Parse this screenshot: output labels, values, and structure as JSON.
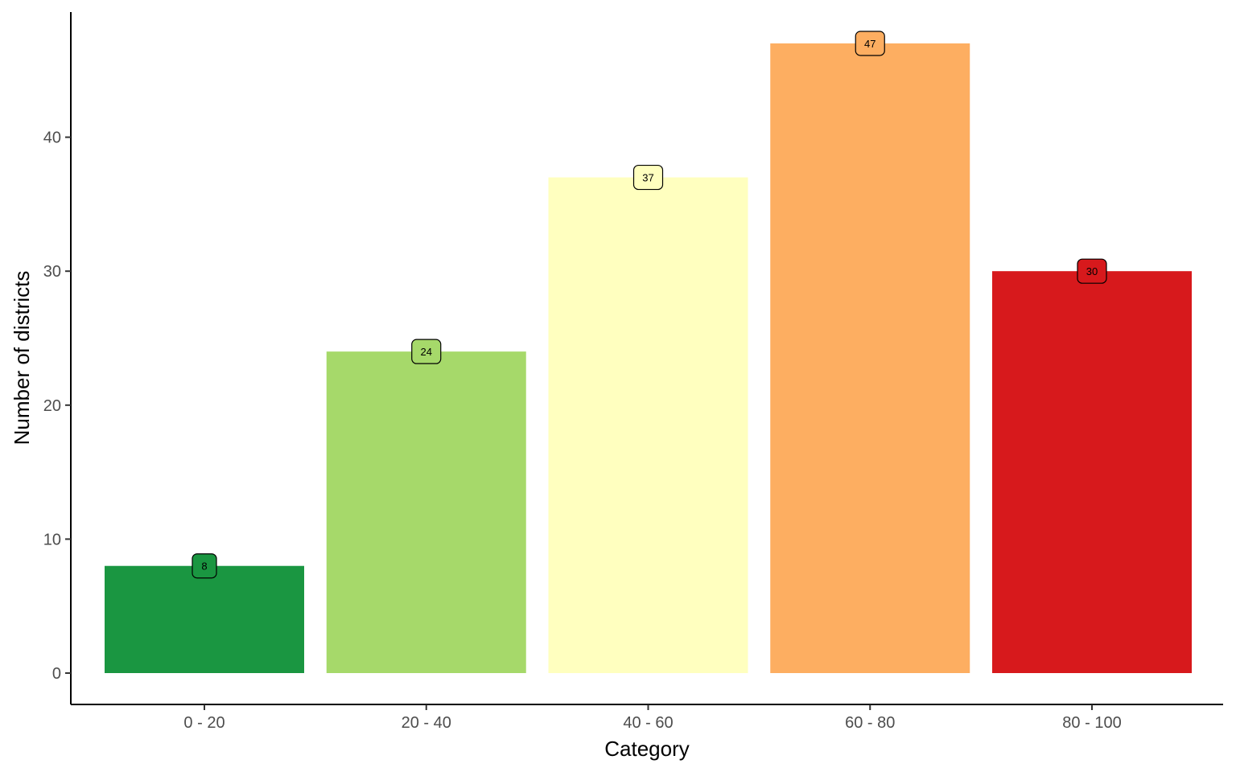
{
  "chart_data": {
    "type": "bar",
    "title": "",
    "xlabel": "Category",
    "ylabel": "Number of districts",
    "categories": [
      "0 - 20",
      "20 - 40",
      "40 - 60",
      "60 - 80",
      "80 - 100"
    ],
    "values": [
      8,
      24,
      37,
      47,
      30
    ],
    "data_labels": [
      "8",
      "24",
      "37",
      "47",
      "30"
    ],
    "bar_colors": [
      "#1a9641",
      "#a6d96a",
      "#ffffbf",
      "#fdae61",
      "#d7191c"
    ],
    "ylim": [
      0,
      49.35
    ],
    "yticks": [
      0,
      10,
      20,
      30,
      40
    ],
    "ytick_labels": [
      "0",
      "10",
      "20",
      "30",
      "40"
    ],
    "grid": false,
    "legend": "none"
  }
}
